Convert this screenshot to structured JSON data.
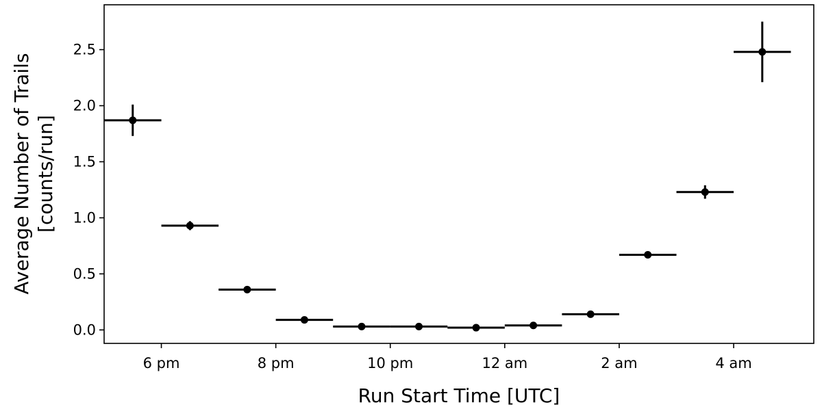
{
  "chart_data": {
    "type": "scatter",
    "title": "",
    "xlabel": "Run Start Time [UTC]",
    "ylabel_lines": [
      "Average Number of Trails",
      "[counts/run]"
    ],
    "xlim": [
      17,
      29.4
    ],
    "ylim": [
      -0.12,
      2.9
    ],
    "grid": false,
    "x_ticks": [
      {
        "value": 18,
        "label": "6 pm"
      },
      {
        "value": 20,
        "label": "8 pm"
      },
      {
        "value": 22,
        "label": "10 pm"
      },
      {
        "value": 24,
        "label": "12 am"
      },
      {
        "value": 26,
        "label": "2 am"
      },
      {
        "value": 28,
        "label": "4 am"
      }
    ],
    "y_ticks": [
      {
        "value": 0.0,
        "label": "0.0"
      },
      {
        "value": 0.5,
        "label": "0.5"
      },
      {
        "value": 1.0,
        "label": "1.0"
      },
      {
        "value": 1.5,
        "label": "1.5"
      },
      {
        "value": 2.0,
        "label": "2.0"
      },
      {
        "value": 2.5,
        "label": "2.5"
      }
    ],
    "series": [
      {
        "color": "#000000",
        "points": [
          {
            "x": 17.5,
            "y": 1.87,
            "xerr": 0.5,
            "yerr": 0.14
          },
          {
            "x": 18.5,
            "y": 0.93,
            "xerr": 0.5,
            "yerr": 0.04
          },
          {
            "x": 19.5,
            "y": 0.36,
            "xerr": 0.5,
            "yerr": 0.015
          },
          {
            "x": 20.5,
            "y": 0.09,
            "xerr": 0.5,
            "yerr": 0.01
          },
          {
            "x": 21.5,
            "y": 0.03,
            "xerr": 0.5,
            "yerr": 0.005
          },
          {
            "x": 22.5,
            "y": 0.03,
            "xerr": 0.5,
            "yerr": 0.005
          },
          {
            "x": 23.5,
            "y": 0.02,
            "xerr": 0.5,
            "yerr": 0.005
          },
          {
            "x": 24.5,
            "y": 0.04,
            "xerr": 0.5,
            "yerr": 0.005
          },
          {
            "x": 25.5,
            "y": 0.14,
            "xerr": 0.5,
            "yerr": 0.01
          },
          {
            "x": 26.5,
            "y": 0.67,
            "xerr": 0.5,
            "yerr": 0.02
          },
          {
            "x": 27.5,
            "y": 1.23,
            "xerr": 0.5,
            "yerr": 0.06
          },
          {
            "x": 28.5,
            "y": 2.48,
            "xerr": 0.5,
            "yerr": 0.27
          }
        ]
      }
    ]
  }
}
